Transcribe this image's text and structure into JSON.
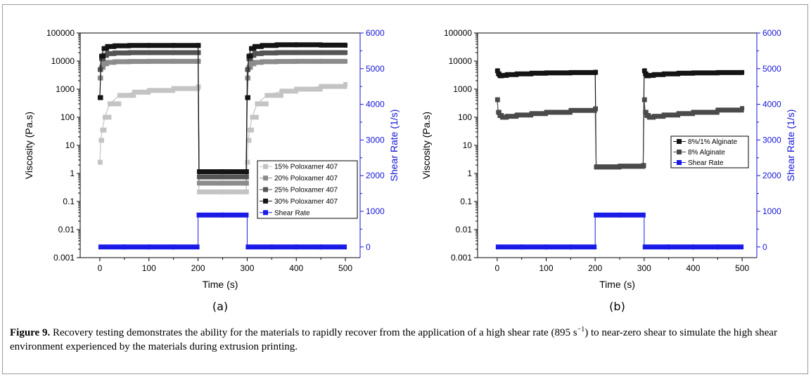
{
  "caption": {
    "label": "Figure 9.",
    "text_before_sup": " Recovery testing demonstrates the ability for the materials to rapidly recover from the application of a high shear rate (895 s",
    "sup": "−1",
    "text_after_sup": ") to near-zero shear to simulate the high shear environment experienced by the materials during extrusion printing."
  },
  "chart_data": [
    {
      "type": "scatter",
      "panel_tag": "(a)",
      "xlabel": "Time (s)",
      "ylabel": "Viscosity (Pa.s)",
      "y2label": "Shear Rate (1/s)",
      "xlim": [
        -40,
        530
      ],
      "ylim": [
        0.001,
        100000
      ],
      "yscale": "log",
      "y2lim": [
        -300,
        6000
      ],
      "xticks": [
        0,
        100,
        200,
        300,
        400,
        500
      ],
      "yticks": [
        "0.001",
        "0.01",
        "0.1",
        "1",
        "10",
        "100",
        "1000",
        "10000",
        "100000"
      ],
      "y2ticks": [
        0,
        1000,
        2000,
        3000,
        4000,
        5000,
        6000
      ],
      "legend": {
        "position": "center-right"
      },
      "colors": {
        "axis": "#000000",
        "secondary_axis": "#1515d8",
        "shear": "#1a1ae6"
      },
      "series": [
        {
          "name": "15% Poloxamer 407",
          "color": "#c4c4c4",
          "axis": "left",
          "x": [
            0,
            2,
            5,
            10,
            20,
            40,
            70,
            100,
            150,
            200,
            202,
            250,
            298,
            300,
            302,
            305,
            310,
            320,
            340,
            370,
            400,
            450,
            500
          ],
          "y": [
            2.5,
            15,
            35,
            100,
            300,
            600,
            780,
            900,
            1050,
            1200,
            0.22,
            0.22,
            0.22,
            2.5,
            15,
            35,
            100,
            300,
            600,
            850,
            1000,
            1250,
            1500
          ]
        },
        {
          "name": "20% Poloxamer 407",
          "color": "#8c8c8c",
          "axis": "left",
          "x": [
            0,
            3,
            8,
            15,
            30,
            60,
            100,
            150,
            200,
            202,
            250,
            298,
            300,
            303,
            308,
            315,
            330,
            360,
            400,
            450,
            500
          ],
          "y": [
            2500,
            6000,
            8000,
            9000,
            9500,
            9700,
            9800,
            9800,
            9800,
            0.45,
            0.45,
            0.45,
            2500,
            6000,
            8000,
            9000,
            9500,
            9700,
            9800,
            9800,
            9800
          ]
        },
        {
          "name": "25% Poloxamer 407",
          "color": "#555555",
          "axis": "left",
          "x": [
            0,
            3,
            8,
            15,
            30,
            60,
            100,
            150,
            200,
            202,
            250,
            298,
            300,
            303,
            308,
            315,
            330,
            360,
            400,
            450,
            500
          ],
          "y": [
            5000,
            12000,
            16000,
            18500,
            19500,
            20000,
            20000,
            20000,
            20000,
            0.75,
            0.75,
            0.75,
            5000,
            12000,
            16000,
            18500,
            19500,
            20000,
            20000,
            20000,
            20000
          ]
        },
        {
          "name": "30% Poloxamer 407",
          "color": "#141414",
          "axis": "left",
          "x": [
            0,
            3,
            8,
            15,
            30,
            60,
            100,
            150,
            200,
            202,
            250,
            298,
            300,
            303,
            308,
            315,
            330,
            360,
            400,
            450,
            500
          ],
          "y": [
            500,
            15000,
            28000,
            33000,
            35000,
            36000,
            36000,
            36000,
            36000,
            1.15,
            1.15,
            1.15,
            500,
            15000,
            28000,
            33000,
            36000,
            38000,
            38000,
            37000,
            36000
          ]
        },
        {
          "name": "Shear Rate",
          "color": "#1a1ae6",
          "axis": "right",
          "x": [
            0,
            50,
            100,
            150,
            200,
            200,
            250,
            300,
            300,
            350,
            400,
            450,
            500
          ],
          "y": [
            0,
            0,
            0,
            0,
            0,
            895,
            895,
            895,
            0,
            0,
            0,
            0,
            0
          ]
        }
      ]
    },
    {
      "type": "scatter",
      "panel_tag": "(b)",
      "xlabel": "Time (s)",
      "ylabel": "Viscosity (Pa.s)",
      "y2label": "Shear Rate (1/s)",
      "xlim": [
        -40,
        530
      ],
      "ylim": [
        0.001,
        100000
      ],
      "yscale": "log",
      "y2lim": [
        -300,
        6000
      ],
      "xticks": [
        0,
        100,
        200,
        300,
        400,
        500
      ],
      "yticks": [
        "0.001",
        "0.01",
        "0.1",
        "1",
        "10",
        "100",
        "1000",
        "10000",
        "100000"
      ],
      "y2ticks": [
        0,
        1000,
        2000,
        3000,
        4000,
        5000,
        6000
      ],
      "legend": {
        "position": "center-right"
      },
      "colors": {
        "axis": "#000000",
        "secondary_axis": "#1515d8",
        "shear": "#1a1ae6"
      },
      "series": [
        {
          "name": "8%/1% Alginate",
          "color": "#141414",
          "axis": "left",
          "x": [
            0,
            2,
            5,
            10,
            20,
            40,
            70,
            100,
            150,
            200,
            202,
            250,
            298,
            300,
            302,
            305,
            310,
            320,
            340,
            370,
            400,
            450,
            500
          ],
          "y": [
            4500,
            3500,
            3000,
            3100,
            3300,
            3500,
            3700,
            3800,
            3900,
            4000,
            1.7,
            1.8,
            1.9,
            4500,
            3500,
            3000,
            3100,
            3300,
            3500,
            3700,
            3800,
            3900,
            4000
          ]
        },
        {
          "name": "8% Alginate",
          "color": "#4a4a4a",
          "axis": "left",
          "x": [
            0,
            2,
            5,
            10,
            20,
            40,
            70,
            100,
            150,
            200,
            202,
            250,
            298,
            300,
            302,
            305,
            310,
            320,
            340,
            370,
            400,
            450,
            500
          ],
          "y": [
            420,
            150,
            115,
            100,
            108,
            120,
            135,
            150,
            175,
            200,
            1.7,
            1.8,
            1.9,
            420,
            150,
            115,
            100,
            108,
            120,
            135,
            150,
            180,
            210
          ]
        },
        {
          "name": "Shear Rate",
          "color": "#1a1ae6",
          "axis": "right",
          "x": [
            0,
            50,
            100,
            150,
            200,
            200,
            250,
            300,
            300,
            350,
            400,
            450,
            500
          ],
          "y": [
            0,
            0,
            0,
            0,
            0,
            895,
            895,
            895,
            0,
            0,
            0,
            0,
            0
          ]
        }
      ]
    }
  ]
}
